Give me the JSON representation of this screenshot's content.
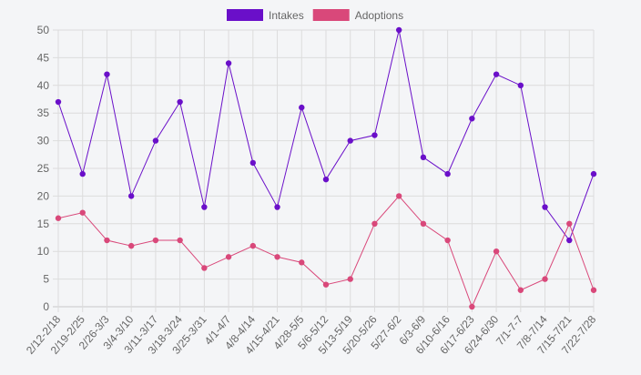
{
  "chart_data": {
    "type": "line",
    "categories": [
      "2/12-2/18",
      "2/19-2/25",
      "2/26-3/3",
      "3/4-3/10",
      "3/11-3/17",
      "3/18-3/24",
      "3/25-3/31",
      "4/1-4/7",
      "4/8-4/14",
      "4/15-4/21",
      "4/28-5/5",
      "5/6-5/12",
      "5/13-5/19",
      "5/20-5/26",
      "5/27-6/2",
      "6/3-6/9",
      "6/10-6/16",
      "6/17-6/23",
      "6/24-6/30",
      "7/1-7-7",
      "7/8-7/14",
      "7/15-7/21",
      "7/22-7/28"
    ],
    "series": [
      {
        "name": "Intakes",
        "color": "#6a0fc9",
        "values": [
          37,
          24,
          42,
          20,
          30,
          37,
          18,
          44,
          26,
          18,
          36,
          23,
          30,
          31,
          50,
          27,
          24,
          34,
          42,
          40,
          18,
          12,
          24
        ]
      },
      {
        "name": "Adoptions",
        "color": "#d9487a",
        "values": [
          16,
          17,
          12,
          11,
          12,
          12,
          7,
          9,
          11,
          9,
          8,
          4,
          5,
          15,
          20,
          15,
          12,
          0,
          10,
          3,
          5,
          15,
          3
        ]
      }
    ],
    "ylim": [
      0,
      50
    ],
    "yticks": [
      0,
      5,
      10,
      15,
      20,
      25,
      30,
      35,
      40,
      45,
      50
    ],
    "grid": true,
    "legend": "top"
  }
}
